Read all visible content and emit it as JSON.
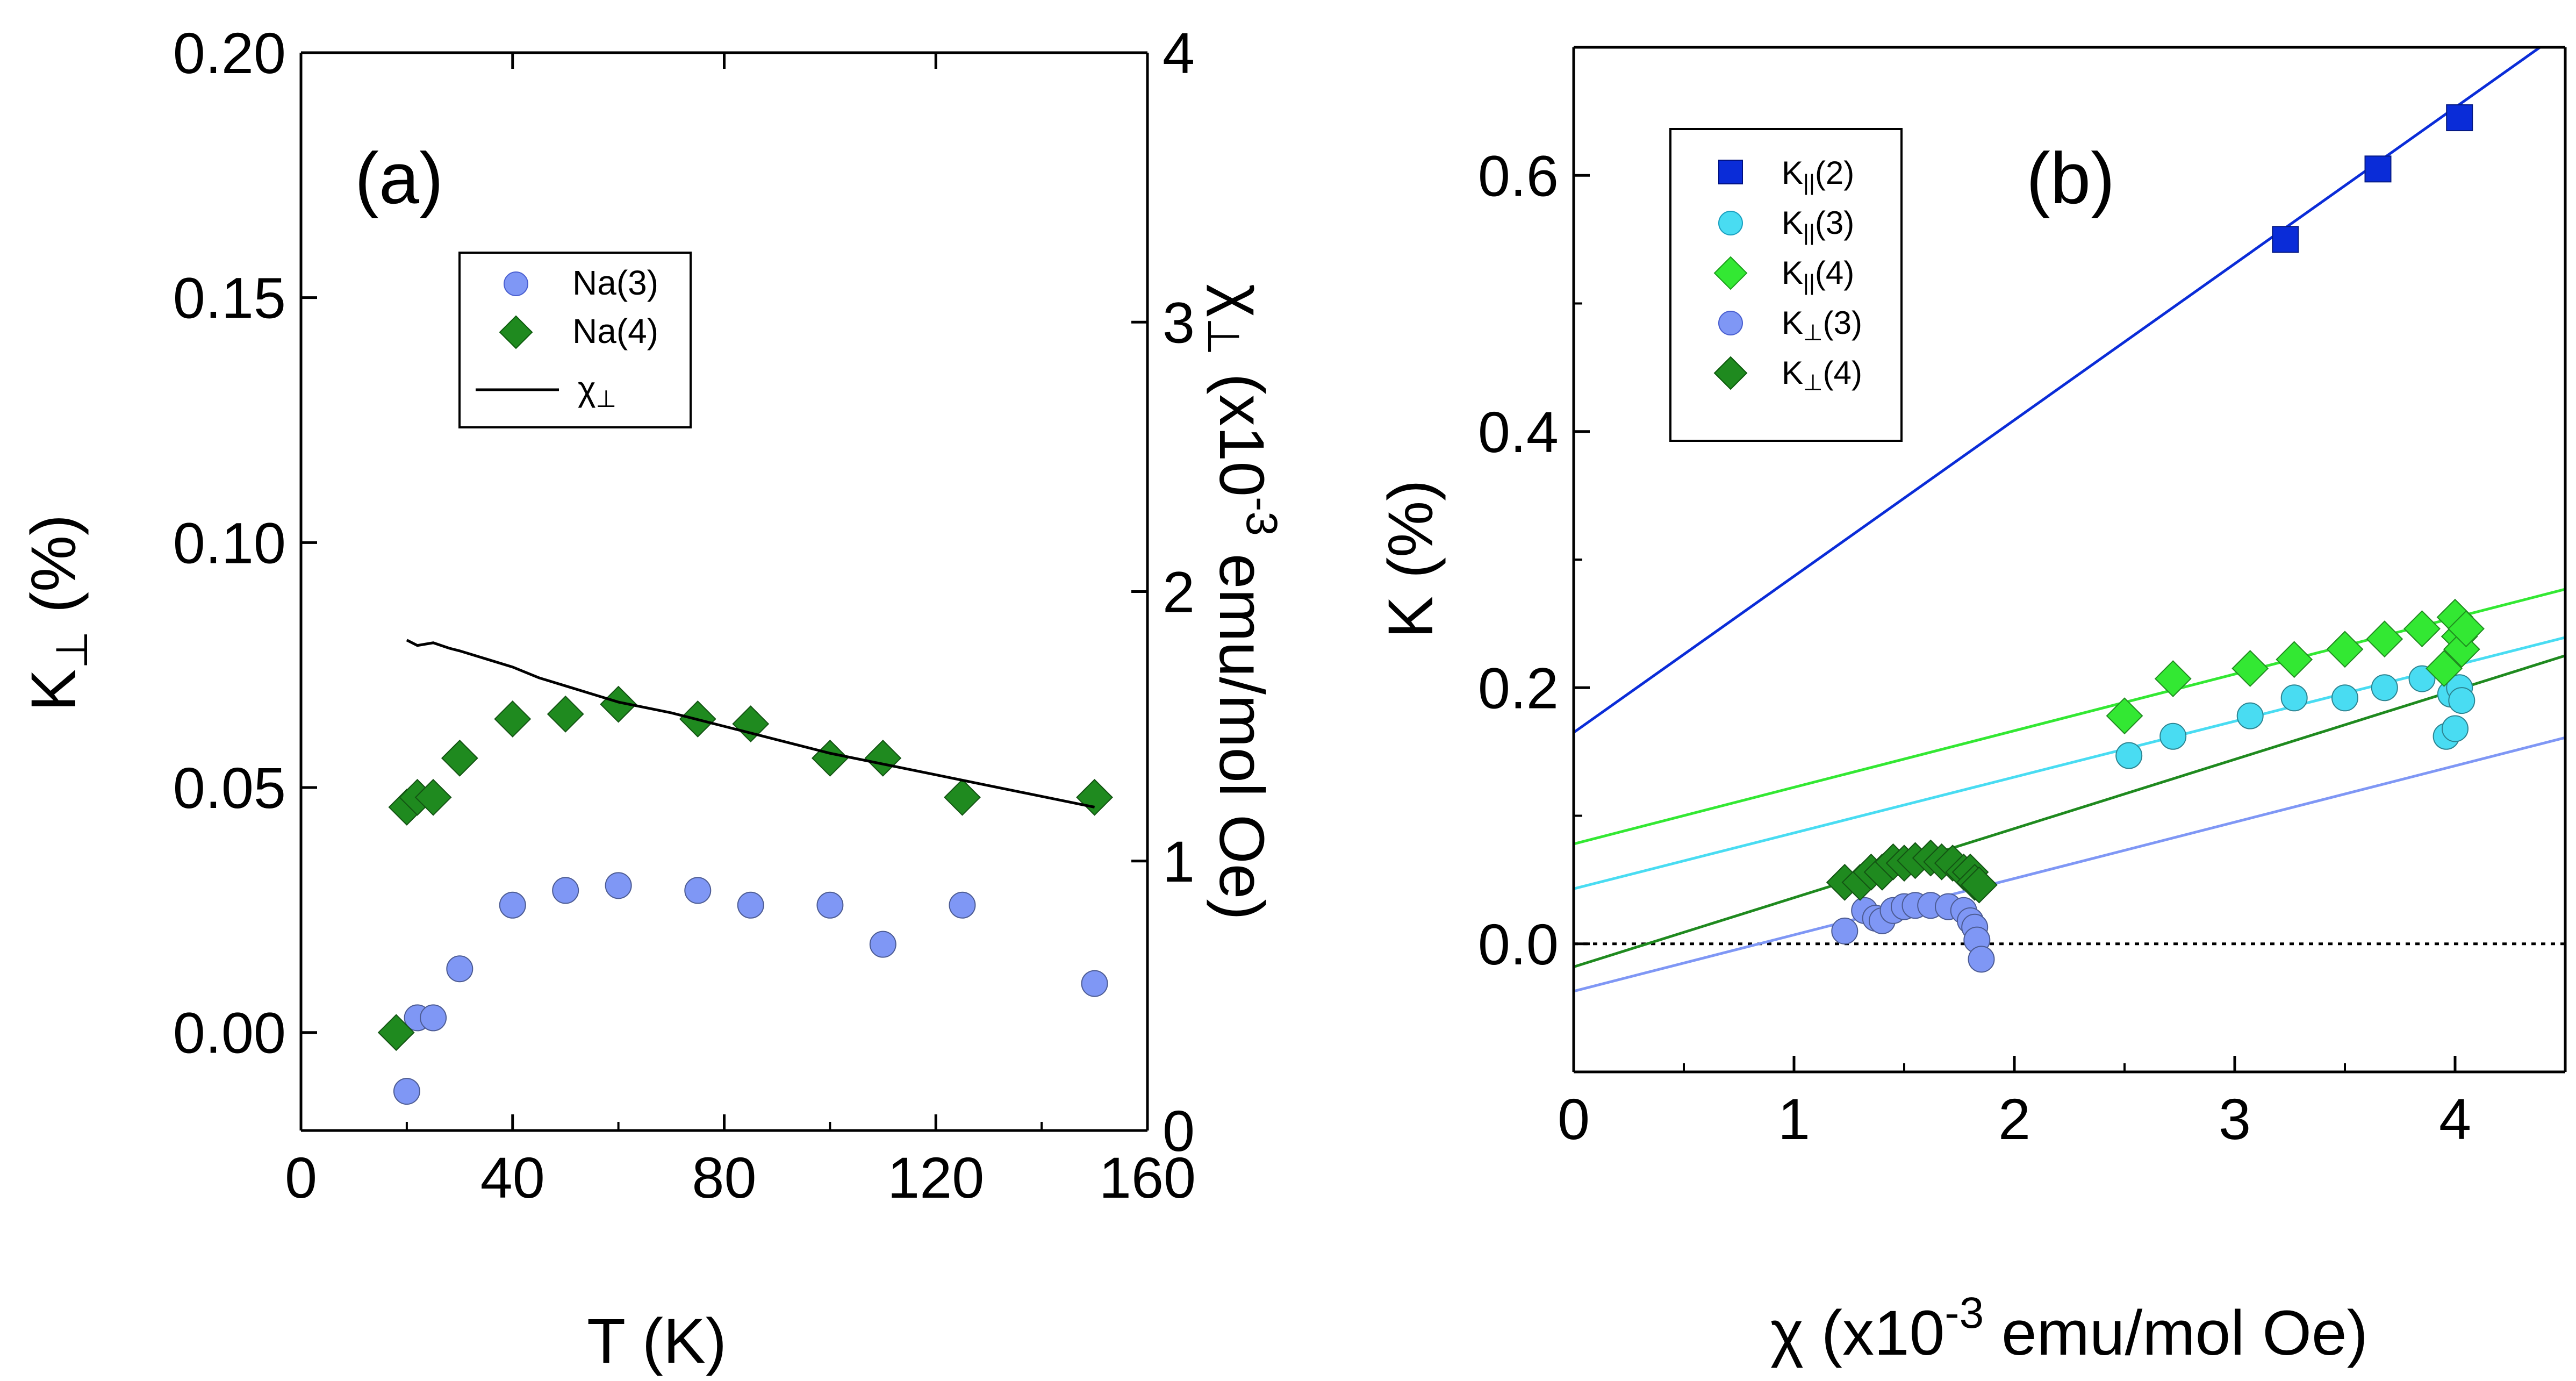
{
  "chart_data": [
    {
      "panel": "a",
      "type": "scatter",
      "panel_label": "(a)",
      "xlabel": "T (K)",
      "ylabel": {
        "main": "K",
        "sub": "⊥",
        "unit": " (%)"
      },
      "y2label": {
        "main": "χ",
        "sub": "⊥",
        "mid": " (x10",
        "sup": "-3",
        "tail": "  emu/mol Oe)"
      },
      "xlim": [
        0,
        160
      ],
      "ylim": [
        -0.02,
        0.2
      ],
      "y2lim": [
        0,
        4
      ],
      "xticks": [
        "0",
        "40",
        "80",
        "120",
        "160"
      ],
      "yticks": [
        "0.00",
        "0.05",
        "0.10",
        "0.15",
        "0.20"
      ],
      "y2ticks": [
        "0",
        "1",
        "2",
        "3",
        "4"
      ],
      "legend": {
        "position": "top-center",
        "entries": [
          {
            "main": "Na(3)",
            "sub": ""
          },
          {
            "main": "Na(4)",
            "sub": ""
          },
          {
            "main": "χ",
            "sub": "⊥"
          }
        ]
      },
      "series": [
        {
          "name": "Na(3)",
          "marker": "circle",
          "color": "#7f97f5",
          "x": [
            20,
            22,
            25,
            30,
            40,
            50,
            60,
            75,
            85,
            100,
            110,
            125,
            150
          ],
          "y": [
            -0.012,
            0.003,
            0.003,
            0.013,
            0.026,
            0.029,
            0.03,
            0.029,
            0.026,
            0.026,
            0.018,
            0.026,
            0.01
          ]
        },
        {
          "name": "Na(4)",
          "marker": "diamond",
          "color": "#1f8a1f",
          "x": [
            18,
            20,
            22,
            25,
            30,
            40,
            50,
            60,
            75,
            85,
            100,
            110,
            125,
            150
          ],
          "y": [
            0.0,
            0.046,
            0.048,
            0.048,
            0.056,
            0.064,
            0.065,
            0.067,
            0.064,
            0.063,
            0.056,
            0.056,
            0.048,
            0.048
          ]
        },
        {
          "name": "χ⊥",
          "marker": "line",
          "color": "#000000",
          "axis": "right",
          "x": [
            20,
            22,
            25,
            28,
            30,
            35,
            40,
            45,
            50,
            55,
            60,
            70,
            80,
            90,
            100,
            110,
            120,
            130,
            140,
            150
          ],
          "y": [
            1.82,
            1.8,
            1.81,
            1.79,
            1.78,
            1.75,
            1.72,
            1.68,
            1.65,
            1.62,
            1.59,
            1.55,
            1.5,
            1.45,
            1.4,
            1.36,
            1.32,
            1.28,
            1.24,
            1.2
          ]
        }
      ]
    },
    {
      "panel": "b",
      "type": "scatter",
      "panel_label": "(b)",
      "xlabel": {
        "main": "χ (x10",
        "sup": "-3",
        "tail": "  emu/mol Oe)"
      },
      "ylabel": "K (%)",
      "xlim": [
        0,
        4.5
      ],
      "ylim": [
        -0.1,
        0.7
      ],
      "xticks": [
        "0",
        "1",
        "2",
        "3",
        "4"
      ],
      "yticks": [
        "0.0",
        "0.2",
        "0.4",
        "0.6"
      ],
      "legend": {
        "position": "top-left",
        "entries": [
          {
            "main": "K",
            "sub": "||",
            "tail": "(2)"
          },
          {
            "main": "K",
            "sub": "||",
            "tail": "(3)"
          },
          {
            "main": "K",
            "sub": "||",
            "tail": "(4)"
          },
          {
            "main": "K",
            "sub": "⊥",
            "tail": "(3)"
          },
          {
            "main": "K",
            "sub": "⊥",
            "tail": "(4)"
          }
        ]
      },
      "zero_line": true,
      "series": [
        {
          "name": "K||(2)",
          "marker": "square",
          "color": "#0a2cd8",
          "x": [
            3.23,
            3.65,
            4.02
          ],
          "y": [
            0.55,
            0.605,
            0.645
          ],
          "fit": {
            "intercept": 0.165,
            "slope": 0.122
          }
        },
        {
          "name": "K||(3)",
          "marker": "circle",
          "color": "#49dcf2",
          "x": [
            2.52,
            2.72,
            3.07,
            3.27,
            3.5,
            3.68,
            3.85,
            3.96,
            3.98,
            4.0,
            4.02,
            4.03
          ],
          "y": [
            0.147,
            0.162,
            0.178,
            0.192,
            0.192,
            0.2,
            0.207,
            0.162,
            0.195,
            0.168,
            0.2,
            0.19
          ],
          "fit": {
            "intercept": 0.043,
            "slope": 0.0436
          }
        },
        {
          "name": "K||(4)",
          "marker": "diamond",
          "color": "#33e833",
          "x": [
            2.5,
            2.72,
            3.07,
            3.27,
            3.5,
            3.68,
            3.85,
            3.95,
            4.0,
            4.02,
            4.03,
            4.05
          ],
          "y": [
            0.178,
            0.207,
            0.215,
            0.222,
            0.23,
            0.238,
            0.246,
            0.215,
            0.255,
            0.24,
            0.23,
            0.246
          ],
          "fit": {
            "intercept": 0.078,
            "slope": 0.0442
          }
        },
        {
          "name": "K⊥(3)",
          "marker": "circle",
          "color": "#7f97f5",
          "x": [
            1.23,
            1.32,
            1.37,
            1.4,
            1.45,
            1.5,
            1.55,
            1.62,
            1.7,
            1.77,
            1.8,
            1.82,
            1.83,
            1.85
          ],
          "y": [
            0.01,
            0.026,
            0.02,
            0.018,
            0.026,
            0.029,
            0.03,
            0.03,
            0.029,
            0.026,
            0.018,
            0.013,
            0.003,
            -0.012
          ],
          "fit": {
            "intercept": -0.037,
            "slope": 0.044
          }
        },
        {
          "name": "K⊥(4)",
          "marker": "diamond",
          "color": "#1f8a1f",
          "x": [
            1.23,
            1.3,
            1.35,
            1.4,
            1.45,
            1.5,
            1.55,
            1.62,
            1.67,
            1.72,
            1.77,
            1.8,
            1.82,
            1.84
          ],
          "y": [
            0.048,
            0.048,
            0.056,
            0.056,
            0.064,
            0.063,
            0.065,
            0.067,
            0.064,
            0.063,
            0.056,
            0.056,
            0.048,
            0.046
          ],
          "fit": {
            "intercept": -0.018,
            "slope": 0.054
          }
        }
      ]
    }
  ]
}
